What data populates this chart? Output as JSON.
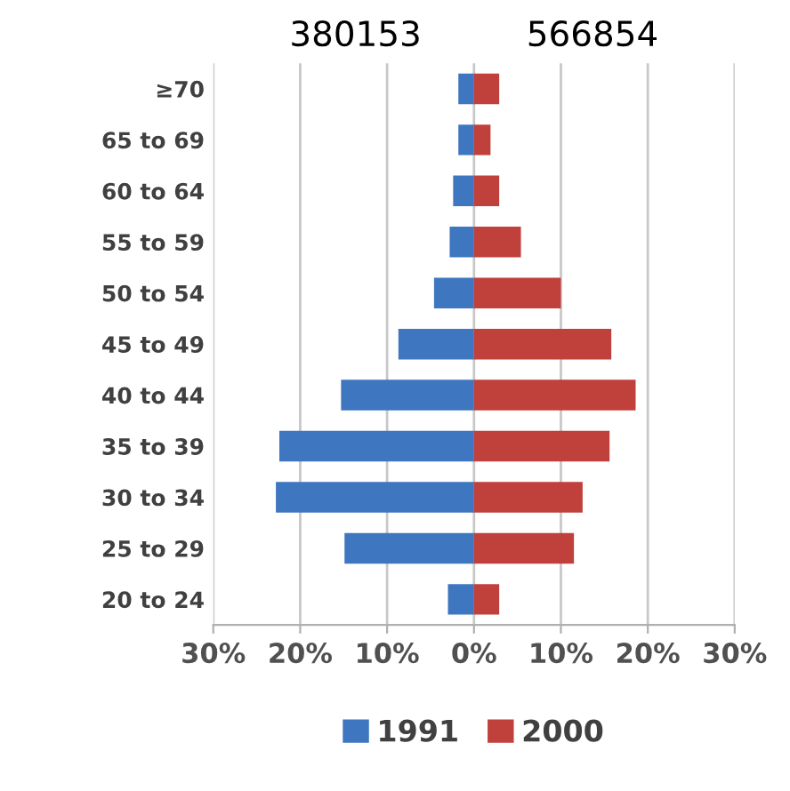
{
  "chart_data": {
    "type": "bar",
    "orientation": "horizontal",
    "stacked": true,
    "annotations": [
      "380153",
      "566854"
    ],
    "categories": [
      "≥70",
      "65 to 69",
      "60 to 64",
      "55 to 59",
      "50 to 54",
      "45 to 49",
      "40 to 44",
      "35 to 39",
      "30 to 34",
      "25 to 29",
      "20 to 24"
    ],
    "series": [
      {
        "name": "1991",
        "color": "#3f76c0",
        "values": [
          -1.8,
          -1.8,
          -2.4,
          -2.8,
          -4.6,
          -8.7,
          -15.3,
          -22.4,
          -22.8,
          -14.9,
          -3.0
        ]
      },
      {
        "name": "2000",
        "color": "#c0403c",
        "values": [
          2.9,
          1.9,
          2.9,
          5.4,
          10.0,
          15.8,
          18.6,
          15.6,
          12.5,
          11.5,
          2.9
        ]
      }
    ],
    "xlim": [
      -30,
      30
    ],
    "xticks": [
      {
        "value": -30,
        "label": "30%"
      },
      {
        "value": -20,
        "label": "20%"
      },
      {
        "value": -10,
        "label": "10%"
      },
      {
        "value": 0,
        "label": "0%"
      },
      {
        "value": 10,
        "label": "10%"
      },
      {
        "value": 20,
        "label": "20%"
      },
      {
        "value": 30,
        "label": "30%"
      }
    ],
    "grid": "x",
    "legend": "bottom"
  }
}
